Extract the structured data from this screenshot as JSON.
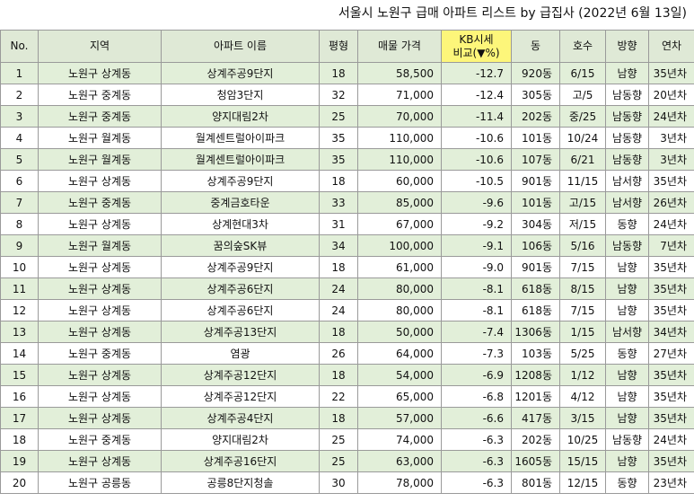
{
  "title": "서울시 노원구 급매 아파트 리스트 by 급집사 (2022년 6월 13일)",
  "headers": [
    "No.",
    "지역",
    "아파트 이름",
    "평형",
    "매물 가격",
    "KB시세\n비교(▼%)",
    "동",
    "호수",
    "방향",
    "연차"
  ],
  "rows": [
    [
      "1",
      "노원구 상계동",
      "상계주공9단지",
      "18",
      "58,500",
      "-12.7",
      "920동",
      "6/15",
      "남향",
      "35년차"
    ],
    [
      "2",
      "노원구 중계동",
      "청암3단지",
      "32",
      "71,000",
      "-12.4",
      "305동",
      "고/5",
      "남동향",
      "20년차"
    ],
    [
      "3",
      "노원구 중계동",
      "양지대림2차",
      "25",
      "70,000",
      "-11.4",
      "202동",
      "중/25",
      "남동향",
      "24년차"
    ],
    [
      "4",
      "노원구 월계동",
      "월계센트럴아이파크",
      "35",
      "110,000",
      "-10.6",
      "101동",
      "10/24",
      "남동향",
      "3년차"
    ],
    [
      "5",
      "노원구 월계동",
      "월계센트럴아이파크",
      "35",
      "110,000",
      "-10.6",
      "107동",
      "6/21",
      "남동향",
      "3년차"
    ],
    [
      "6",
      "노원구 상계동",
      "상계주공9단지",
      "18",
      "60,000",
      "-10.5",
      "901동",
      "11/15",
      "남서향",
      "35년차"
    ],
    [
      "7",
      "노원구 중계동",
      "중계금호타운",
      "33",
      "85,000",
      "-9.6",
      "101동",
      "고/15",
      "남서향",
      "26년차"
    ],
    [
      "8",
      "노원구 상계동",
      "상계현대3차",
      "31",
      "67,000",
      "-9.2",
      "304동",
      "저/15",
      "동향",
      "24년차"
    ],
    [
      "9",
      "노원구 월계동",
      "꿈의숲SK뷰",
      "34",
      "100,000",
      "-9.1",
      "106동",
      "5/16",
      "남동향",
      "7년차"
    ],
    [
      "10",
      "노원구 상계동",
      "상계주공9단지",
      "18",
      "61,000",
      "-9.0",
      "901동",
      "7/15",
      "남향",
      "35년차"
    ],
    [
      "11",
      "노원구 상계동",
      "상계주공6단지",
      "24",
      "80,000",
      "-8.1",
      "618동",
      "8/15",
      "남향",
      "35년차"
    ],
    [
      "12",
      "노원구 상계동",
      "상계주공6단지",
      "24",
      "80,000",
      "-8.1",
      "618동",
      "7/15",
      "남향",
      "35년차"
    ],
    [
      "13",
      "노원구 상계동",
      "상계주공13단지",
      "18",
      "50,000",
      "-7.4",
      "1306동",
      "1/15",
      "남서향",
      "34년차"
    ],
    [
      "14",
      "노원구 중계동",
      "염광",
      "26",
      "64,000",
      "-7.3",
      "103동",
      "5/25",
      "동향",
      "27년차"
    ],
    [
      "15",
      "노원구 상계동",
      "상계주공12단지",
      "18",
      "54,000",
      "-6.9",
      "1208동",
      "1/12",
      "남향",
      "35년차"
    ],
    [
      "16",
      "노원구 상계동",
      "상계주공12단지",
      "22",
      "65,000",
      "-6.8",
      "1201동",
      "4/12",
      "남향",
      "35년차"
    ],
    [
      "17",
      "노원구 상계동",
      "상계주공4단지",
      "18",
      "57,000",
      "-6.6",
      "417동",
      "3/15",
      "남향",
      "35년차"
    ],
    [
      "18",
      "노원구 중계동",
      "양지대림2차",
      "25",
      "74,000",
      "-6.3",
      "202동",
      "10/25",
      "남동향",
      "24년차"
    ],
    [
      "19",
      "노원구 상계동",
      "상계주공16단지",
      "25",
      "63,000",
      "-6.3",
      "1605동",
      "15/15",
      "남향",
      "35년차"
    ],
    [
      "20",
      "노원구 공릉동",
      "공릉8단지청솔",
      "30",
      "78,000",
      "-6.3",
      "801동",
      "12/15",
      "동향",
      "23년차"
    ]
  ]
}
